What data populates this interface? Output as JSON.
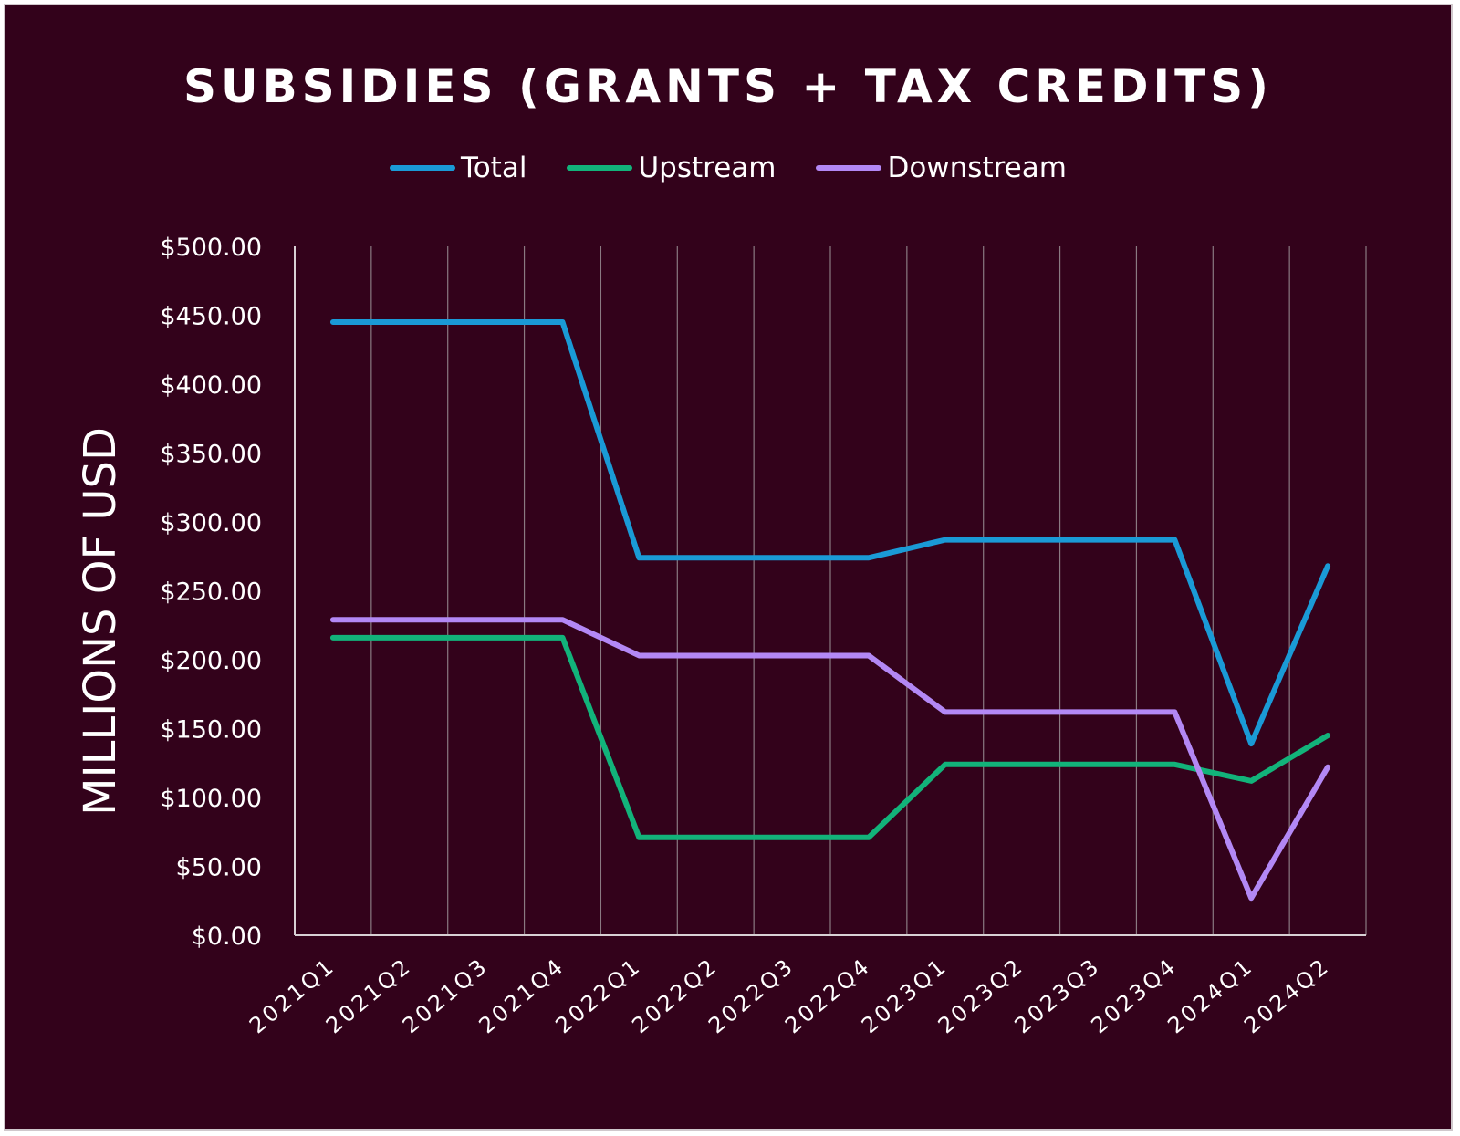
{
  "chart_data": {
    "type": "line",
    "title": "SUBSIDIES (GRANTS + TAX CREDITS)",
    "xlabel": "",
    "ylabel": "MILLIONS OF USD",
    "ylim": [
      0,
      500
    ],
    "y_ticks": [
      "$0.00",
      "$50.00",
      "$100.00",
      "$150.00",
      "$200.00",
      "$250.00",
      "$300.00",
      "$350.00",
      "$400.00",
      "$450.00",
      "$500.00"
    ],
    "categories": [
      "2021Q1",
      "2021Q2",
      "2021Q3",
      "2021Q4",
      "2022Q1",
      "2022Q2",
      "2022Q3",
      "2022Q4",
      "2023Q1",
      "2023Q2",
      "2023Q3",
      "2023Q4",
      "2024Q1",
      "2024Q2"
    ],
    "legend_position": "top",
    "grid": "vertical",
    "series": [
      {
        "name": "Total",
        "color": "#1a9ad6",
        "values": [
          445,
          445,
          445,
          445,
          274,
          274,
          274,
          274,
          287,
          287,
          287,
          287,
          139,
          268
        ]
      },
      {
        "name": "Upstream",
        "color": "#12b37a",
        "values": [
          216,
          216,
          216,
          216,
          71,
          71,
          71,
          71,
          124,
          124,
          124,
          124,
          112,
          145
        ]
      },
      {
        "name": "Downstream",
        "color": "#b388f5",
        "values": [
          229,
          229,
          229,
          229,
          203,
          203,
          203,
          203,
          162,
          162,
          162,
          162,
          27,
          122
        ]
      }
    ]
  }
}
